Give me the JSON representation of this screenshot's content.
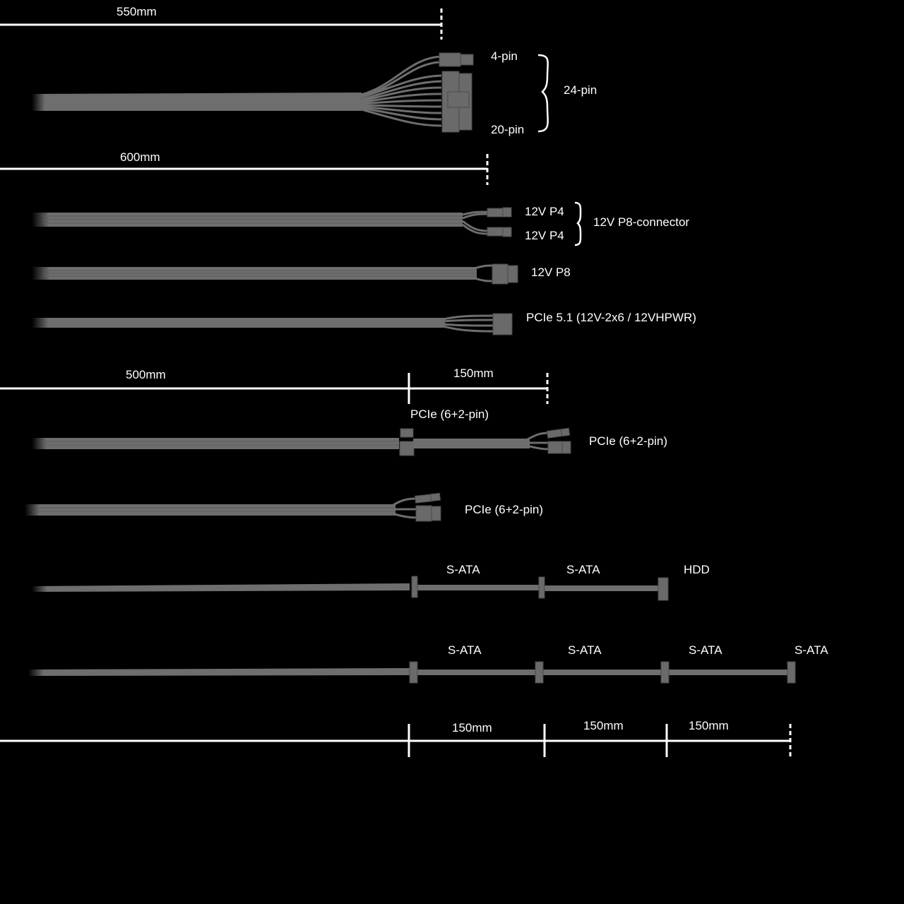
{
  "colors": {
    "background": "#000000",
    "cable": "#6e6e6e",
    "dimension_line": "#ffffff",
    "label": "#ffffff"
  },
  "dimensions": {
    "atx_length": "550mm",
    "cpu_length": "600mm",
    "pcie_main_length": "500mm",
    "pcie_extension_length": "150mm",
    "sata_segments": [
      "150mm",
      "150mm",
      "150mm"
    ]
  },
  "labels": {
    "atx_4pin": "4-pin",
    "atx_20pin": "20-pin",
    "atx_24pin": "24-pin",
    "cpu_p4_a": "12V P4",
    "cpu_p4_b": "12V P4",
    "cpu_p8_connector": "12V P8-connector",
    "cpu_p8": "12V P8",
    "pcie5": "PCIe 5.1 (12V-2x6 / 12VHPWR)",
    "pcie_mid": "PCIe (6+2-pin)",
    "pcie_end": "PCIe (6+2-pin)",
    "pcie_single": "PCIe (6+2-pin)",
    "sata1": [
      "S-ATA",
      "S-ATA",
      "HDD"
    ],
    "sata2": [
      "S-ATA",
      "S-ATA",
      "S-ATA",
      "S-ATA"
    ]
  }
}
